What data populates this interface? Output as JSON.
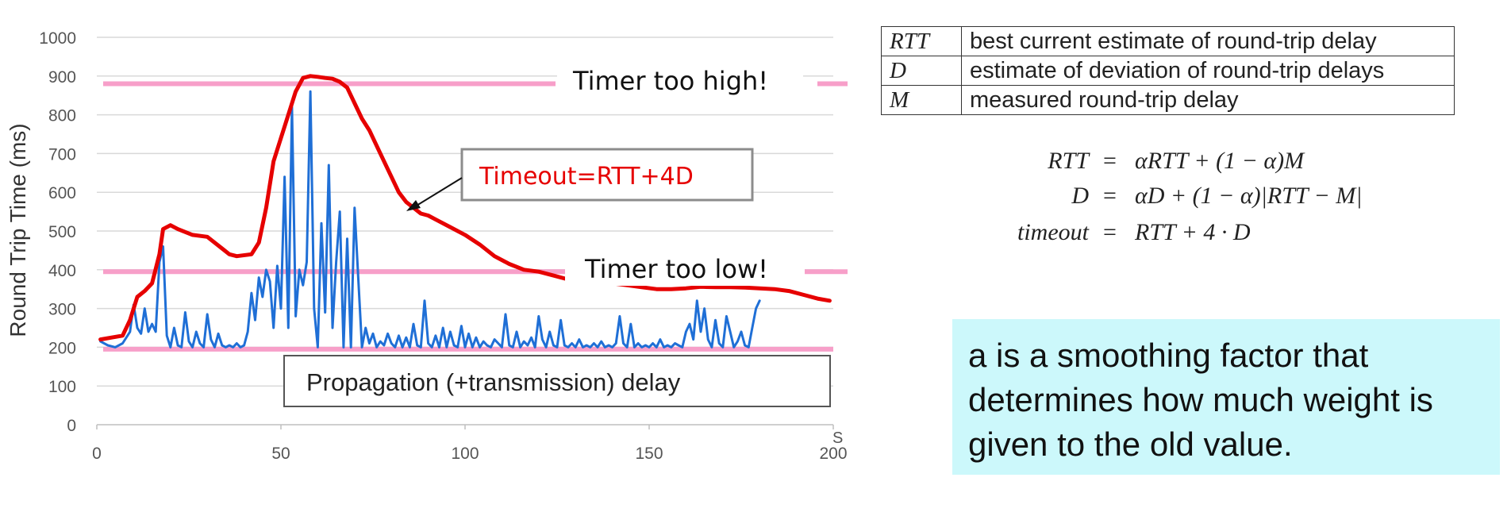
{
  "chart_data": {
    "type": "line",
    "ylabel": "Round Trip Time (ms)",
    "xlabel": "",
    "x_unit": "S",
    "xlim": [
      0,
      200
    ],
    "ylim": [
      0,
      1000
    ],
    "xticks": [
      0,
      50,
      100,
      150,
      200
    ],
    "yticks": [
      0,
      100,
      200,
      300,
      400,
      500,
      600,
      700,
      800,
      900,
      1000
    ],
    "grid": "horizontal",
    "series": [
      {
        "kind": "measured",
        "color": "#1f6fd6",
        "points": [
          [
            1,
            215
          ],
          [
            3,
            205
          ],
          [
            5,
            200
          ],
          [
            7,
            210
          ],
          [
            9,
            240
          ],
          [
            10,
            310
          ],
          [
            11,
            250
          ],
          [
            12,
            235
          ],
          [
            13,
            300
          ],
          [
            14,
            240
          ],
          [
            15,
            260
          ],
          [
            16,
            240
          ],
          [
            17,
            420
          ],
          [
            18,
            460
          ],
          [
            19,
            230
          ],
          [
            20,
            200
          ],
          [
            21,
            250
          ],
          [
            22,
            205
          ],
          [
            23,
            200
          ],
          [
            24,
            290
          ],
          [
            25,
            215
          ],
          [
            26,
            200
          ],
          [
            27,
            240
          ],
          [
            28,
            210
          ],
          [
            29,
            200
          ],
          [
            30,
            285
          ],
          [
            31,
            220
          ],
          [
            32,
            200
          ],
          [
            33,
            235
          ],
          [
            34,
            205
          ],
          [
            35,
            200
          ],
          [
            36,
            205
          ],
          [
            37,
            200
          ],
          [
            38,
            210
          ],
          [
            39,
            200
          ],
          [
            40,
            205
          ],
          [
            41,
            240
          ],
          [
            42,
            340
          ],
          [
            43,
            270
          ],
          [
            44,
            380
          ],
          [
            45,
            330
          ],
          [
            46,
            400
          ],
          [
            47,
            370
          ],
          [
            48,
            250
          ],
          [
            49,
            410
          ],
          [
            50,
            300
          ],
          [
            51,
            640
          ],
          [
            52,
            250
          ],
          [
            53,
            820
          ],
          [
            54,
            280
          ],
          [
            55,
            400
          ],
          [
            56,
            360
          ],
          [
            57,
            420
          ],
          [
            58,
            860
          ],
          [
            59,
            300
          ],
          [
            60,
            200
          ],
          [
            61,
            520
          ],
          [
            62,
            290
          ],
          [
            63,
            670
          ],
          [
            64,
            250
          ],
          [
            65,
            420
          ],
          [
            66,
            550
          ],
          [
            67,
            200
          ],
          [
            68,
            480
          ],
          [
            69,
            200
          ],
          [
            70,
            560
          ],
          [
            71,
            380
          ],
          [
            72,
            200
          ],
          [
            73,
            250
          ],
          [
            74,
            210
          ],
          [
            75,
            235
          ],
          [
            76,
            200
          ],
          [
            77,
            215
          ],
          [
            78,
            205
          ],
          [
            79,
            235
          ],
          [
            80,
            210
          ],
          [
            81,
            200
          ],
          [
            82,
            230
          ],
          [
            83,
            200
          ],
          [
            84,
            225
          ],
          [
            85,
            200
          ],
          [
            86,
            260
          ],
          [
            87,
            205
          ],
          [
            88,
            200
          ],
          [
            89,
            320
          ],
          [
            90,
            210
          ],
          [
            91,
            200
          ],
          [
            92,
            230
          ],
          [
            93,
            200
          ],
          [
            94,
            250
          ],
          [
            95,
            200
          ],
          [
            96,
            240
          ],
          [
            97,
            205
          ],
          [
            98,
            200
          ],
          [
            99,
            255
          ],
          [
            100,
            200
          ],
          [
            101,
            235
          ],
          [
            102,
            200
          ],
          [
            103,
            225
          ],
          [
            104,
            200
          ],
          [
            105,
            215
          ],
          [
            106,
            205
          ],
          [
            107,
            200
          ],
          [
            108,
            220
          ],
          [
            109,
            210
          ],
          [
            110,
            200
          ],
          [
            111,
            285
          ],
          [
            112,
            205
          ],
          [
            113,
            200
          ],
          [
            114,
            240
          ],
          [
            115,
            200
          ],
          [
            116,
            215
          ],
          [
            117,
            205
          ],
          [
            118,
            225
          ],
          [
            119,
            200
          ],
          [
            120,
            280
          ],
          [
            121,
            220
          ],
          [
            122,
            200
          ],
          [
            123,
            240
          ],
          [
            124,
            205
          ],
          [
            125,
            200
          ],
          [
            126,
            270
          ],
          [
            127,
            205
          ],
          [
            128,
            200
          ],
          [
            129,
            210
          ],
          [
            130,
            200
          ],
          [
            131,
            220
          ],
          [
            132,
            200
          ],
          [
            133,
            205
          ],
          [
            134,
            200
          ],
          [
            135,
            210
          ],
          [
            136,
            200
          ],
          [
            137,
            215
          ],
          [
            138,
            200
          ],
          [
            139,
            205
          ],
          [
            140,
            200
          ],
          [
            141,
            210
          ],
          [
            142,
            280
          ],
          [
            143,
            210
          ],
          [
            144,
            200
          ],
          [
            145,
            260
          ],
          [
            146,
            200
          ],
          [
            147,
            210
          ],
          [
            148,
            200
          ],
          [
            149,
            205
          ],
          [
            150,
            200
          ],
          [
            151,
            210
          ],
          [
            152,
            200
          ],
          [
            153,
            220
          ],
          [
            154,
            200
          ],
          [
            155,
            205
          ],
          [
            156,
            200
          ],
          [
            157,
            210
          ],
          [
            158,
            205
          ],
          [
            159,
            200
          ],
          [
            160,
            240
          ],
          [
            161,
            260
          ],
          [
            162,
            220
          ],
          [
            163,
            320
          ],
          [
            164,
            240
          ],
          [
            165,
            300
          ],
          [
            166,
            220
          ],
          [
            167,
            200
          ],
          [
            168,
            270
          ],
          [
            169,
            210
          ],
          [
            170,
            200
          ],
          [
            171,
            280
          ],
          [
            172,
            240
          ],
          [
            173,
            200
          ],
          [
            174,
            215
          ],
          [
            175,
            240
          ],
          [
            176,
            205
          ],
          [
            177,
            200
          ],
          [
            178,
            250
          ],
          [
            179,
            300
          ],
          [
            180,
            320
          ]
        ]
      },
      {
        "kind": "timeout",
        "label": "Timeout=RTT+4D",
        "color": "#e60000",
        "points": [
          [
            1,
            220
          ],
          [
            4,
            225
          ],
          [
            7,
            230
          ],
          [
            9,
            270
          ],
          [
            11,
            330
          ],
          [
            13,
            345
          ],
          [
            15,
            365
          ],
          [
            17,
            440
          ],
          [
            18,
            505
          ],
          [
            20,
            515
          ],
          [
            22,
            505
          ],
          [
            26,
            490
          ],
          [
            30,
            485
          ],
          [
            34,
            455
          ],
          [
            36,
            440
          ],
          [
            38,
            435
          ],
          [
            42,
            440
          ],
          [
            44,
            470
          ],
          [
            46,
            560
          ],
          [
            48,
            680
          ],
          [
            50,
            740
          ],
          [
            52,
            800
          ],
          [
            54,
            860
          ],
          [
            56,
            895
          ],
          [
            58,
            900
          ],
          [
            60,
            898
          ],
          [
            62,
            895
          ],
          [
            64,
            893
          ],
          [
            66,
            885
          ],
          [
            68,
            870
          ],
          [
            70,
            830
          ],
          [
            72,
            790
          ],
          [
            74,
            760
          ],
          [
            76,
            720
          ],
          [
            78,
            680
          ],
          [
            80,
            640
          ],
          [
            82,
            600
          ],
          [
            84,
            575
          ],
          [
            86,
            560
          ],
          [
            88,
            545
          ],
          [
            90,
            540
          ],
          [
            92,
            530
          ],
          [
            96,
            510
          ],
          [
            100,
            490
          ],
          [
            104,
            465
          ],
          [
            108,
            435
          ],
          [
            112,
            415
          ],
          [
            116,
            400
          ],
          [
            120,
            395
          ],
          [
            124,
            385
          ],
          [
            128,
            375
          ],
          [
            132,
            370
          ],
          [
            136,
            368
          ],
          [
            140,
            365
          ],
          [
            144,
            360
          ],
          [
            148,
            355
          ],
          [
            152,
            350
          ],
          [
            156,
            350
          ],
          [
            160,
            352
          ],
          [
            164,
            356
          ],
          [
            168,
            355
          ],
          [
            172,
            355
          ],
          [
            176,
            354
          ],
          [
            180,
            352
          ],
          [
            184,
            350
          ],
          [
            188,
            345
          ],
          [
            192,
            335
          ],
          [
            196,
            325
          ],
          [
            199,
            320
          ]
        ]
      }
    ],
    "reference_lines": [
      {
        "y": 880,
        "label": "Timer too high!",
        "color": "#f79fc9"
      },
      {
        "y": 395,
        "label": "Timer too low!",
        "color": "#f79fc9"
      },
      {
        "y": 195,
        "label": "Propagation (+transmission) delay",
        "color": "#f79fc9"
      }
    ]
  },
  "definitions": [
    {
      "symbol": "RTT",
      "description": "best current estimate of round-trip delay"
    },
    {
      "symbol": "D",
      "description": "estimate of deviation of round-trip delays"
    },
    {
      "symbol": "M",
      "description": "measured round-trip delay"
    }
  ],
  "equations": [
    {
      "lhs": "RTT",
      "op": "=",
      "rhs": "αRTT + (1 − α)M"
    },
    {
      "lhs": "D",
      "op": "=",
      "rhs": "αD + (1 − α)|RTT − M|"
    },
    {
      "lhs": "timeout",
      "op": "=",
      "rhs": "RTT + 4 · D"
    }
  ],
  "note": "a is a smoothing factor that determines how much weight is given to the old value."
}
